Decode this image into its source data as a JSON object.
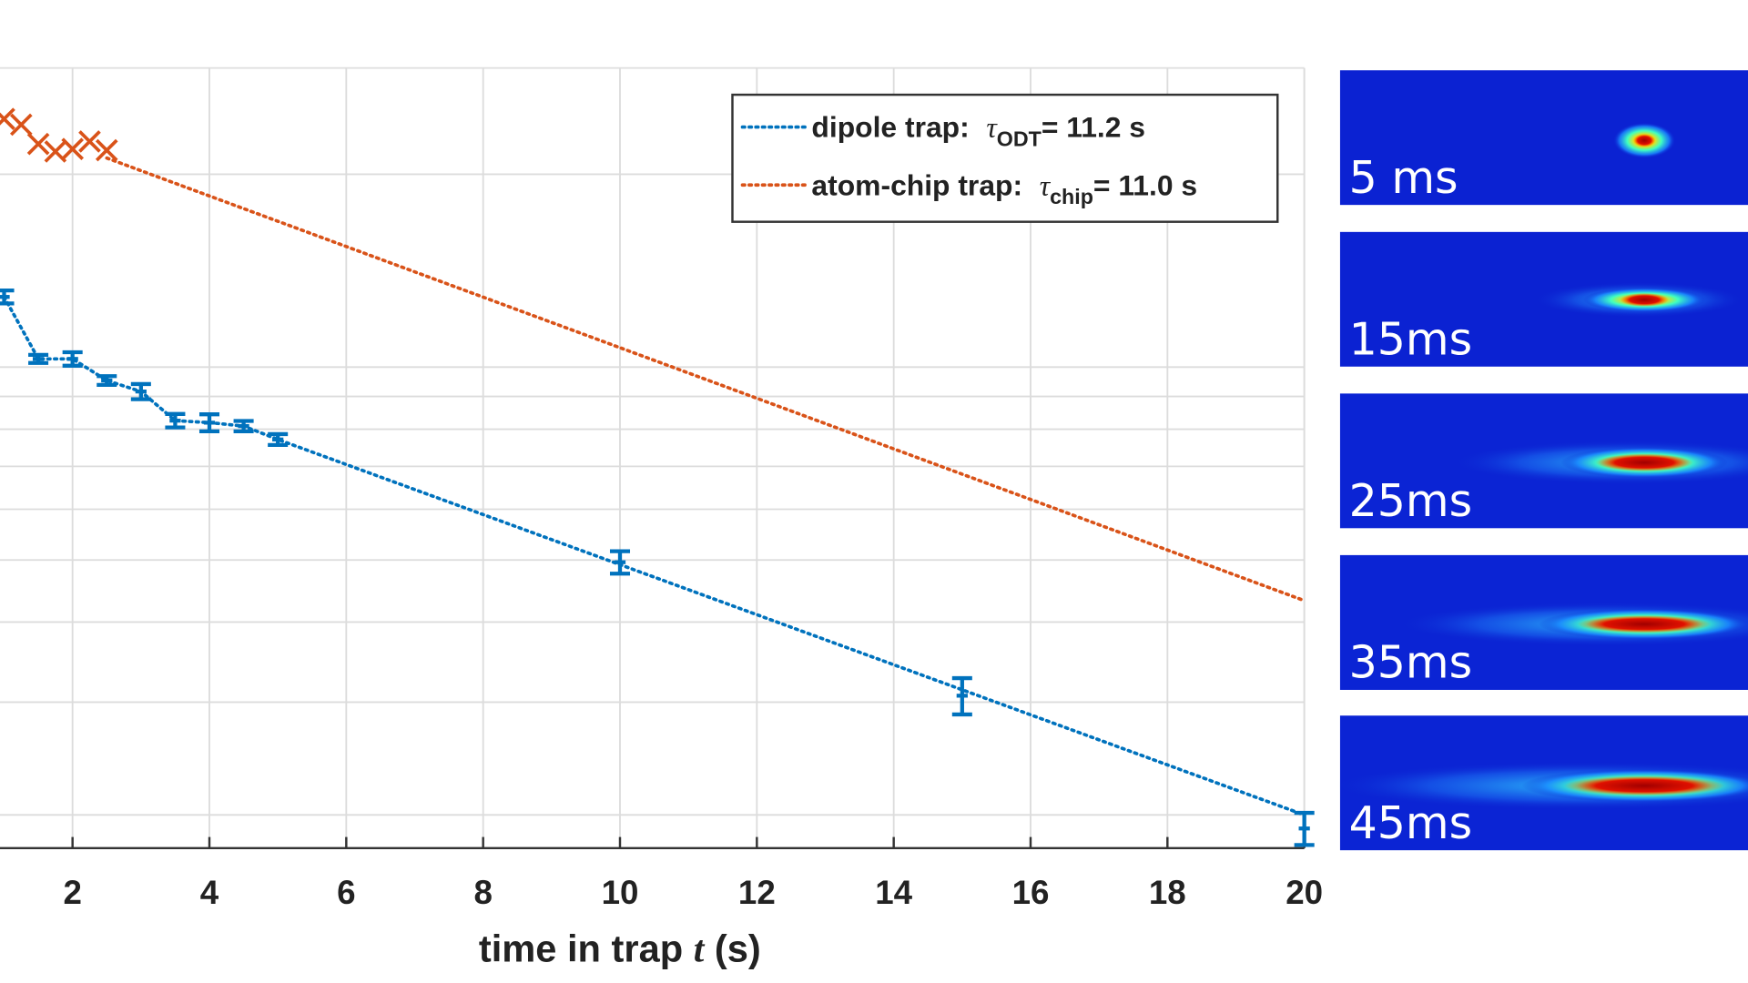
{
  "chart_data": {
    "type": "scatter",
    "xlabel_parts": [
      "time in trap ",
      "t",
      " (s)"
    ],
    "xlim": [
      0.94,
      20
    ],
    "xticks": [
      2,
      4,
      6,
      8,
      10,
      12,
      14,
      16,
      18,
      20
    ],
    "ylog": true,
    "ylim": [
      17750,
      293000
    ],
    "ygrid": [
      20000,
      30000,
      40000,
      50000,
      60000,
      70000,
      80000,
      90000,
      100000,
      200000
    ],
    "grid": true,
    "legend": "upper right",
    "series": [
      {
        "name_parts": [
          "dipole trap: ",
          "τ",
          "ODT",
          "= 11.2 s"
        ],
        "color": "#0072BD",
        "marker": "errorbar",
        "x": [
          1,
          1.5,
          2,
          2.5,
          3,
          3.5,
          4,
          4.5,
          5,
          10,
          15,
          20
        ],
        "values": [
          128700,
          103000,
          103000,
          95300,
          91600,
          82500,
          81900,
          80900,
          77100,
          49600,
          30700,
          19050
        ],
        "errors": [
          3000,
          1500,
          2500,
          1500,
          2500,
          2000,
          2500,
          1500,
          1500,
          2000,
          2000,
          1100
        ],
        "line_x": [
          1,
          1.5,
          2,
          2.5,
          3,
          3.5,
          4,
          4.5,
          5,
          20
        ],
        "line_values": [
          128700,
          103000,
          103000,
          95300,
          91600,
          82500,
          81900,
          80900,
          77100,
          20000
        ]
      },
      {
        "name_parts": [
          "atom-chip trap: ",
          "τ",
          "chip",
          "= 11.0 s"
        ],
        "color": "#D95319",
        "marker": "x",
        "x": [
          1,
          1.25,
          1.5,
          1.75,
          2,
          2.25,
          2.5
        ],
        "values": [
          244000,
          239000,
          223000,
          217000,
          219000,
          225000,
          218000
        ],
        "line_x": [
          2.5,
          20
        ],
        "line_values": [
          212000,
          43200
        ]
      }
    ]
  },
  "images": [
    {
      "label": "5 ms"
    },
    {
      "label": "15ms"
    },
    {
      "label": "25ms"
    },
    {
      "label": "35ms"
    },
    {
      "label": "45ms"
    }
  ]
}
